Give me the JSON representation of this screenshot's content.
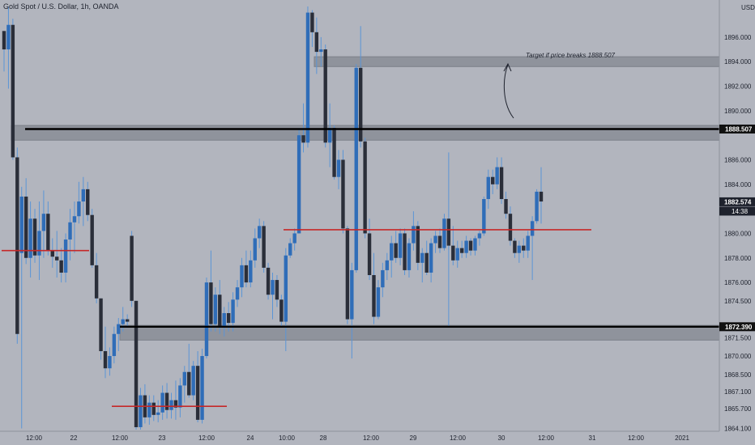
{
  "header": {
    "symbol_line": "Gold Spot / U.S. Dollar, 1h, OANDA",
    "currency": "USD"
  },
  "colors": {
    "background": "#b2b5be",
    "bull_body": "#2f6db8",
    "bear_body": "#2a2e39",
    "wick": "#5b95d6",
    "zone_fill": "#8f939c",
    "black_line": "#000000",
    "red_line": "#c62828",
    "axis_text": "#1e222d"
  },
  "chart_data": {
    "type": "candlestick",
    "title": "Gold Spot / U.S. Dollar, 1h, OANDA",
    "ylim": [
      1864.0,
      1898.5
    ],
    "y_ticks": [
      "1864.100",
      "1865.700",
      "1867.100",
      "1868.500",
      "1870.000",
      "1871.500",
      "1872.390",
      "1874.500",
      "1876.000",
      "1878.000",
      "1880.000",
      "1882.574",
      "1884.000",
      "1886.000",
      "1888.507",
      "1890.000",
      "1892.000",
      "1894.000",
      "1896.000"
    ],
    "x_labels": [
      "12:00",
      "22",
      "12:00",
      "23",
      "12:00",
      "24",
      "10:00",
      "28",
      "12:00",
      "29",
      "12:00",
      "30",
      "12:00",
      "31",
      "12:00",
      "2021"
    ],
    "last_price_badge": "1882.574",
    "countdown_badge": "14:38",
    "levels": [
      {
        "label": "1888.507",
        "price": 1888.507,
        "color": "black"
      },
      {
        "label": "1872.390",
        "price": 1872.39,
        "color": "black"
      }
    ],
    "zones": [
      {
        "from": 1887.6,
        "to": 1888.8
      },
      {
        "from": 1871.3,
        "to": 1872.5
      },
      {
        "from": 1893.6,
        "to": 1894.4
      }
    ],
    "red_lines": [
      {
        "price": 1878.6
      },
      {
        "price": 1880.3
      },
      {
        "price": 1865.9
      }
    ],
    "annotation": {
      "text": "Target if price breaks 1888.507"
    },
    "candles": [
      [
        1896.5,
        1896.5,
        1893.2,
        1895.0
      ],
      [
        1895.0,
        1898.5,
        1891.8,
        1897.0
      ],
      [
        1897.0,
        1897.5,
        1886.0,
        1886.2
      ],
      [
        1886.2,
        1887.0,
        1871.0,
        1871.8
      ],
      [
        1878.4,
        1883.8,
        1864.1,
        1883.0
      ],
      [
        1883.0,
        1884.5,
        1877.5,
        1878.0
      ],
      [
        1878.0,
        1882.6,
        1876.4,
        1881.2
      ],
      [
        1881.2,
        1882.0,
        1877.6,
        1878.2
      ],
      [
        1878.2,
        1882.6,
        1876.2,
        1880.2
      ],
      [
        1880.2,
        1883.5,
        1878.0,
        1881.6
      ],
      [
        1881.6,
        1882.6,
        1878.2,
        1878.6
      ],
      [
        1878.6,
        1879.6,
        1877.2,
        1878.1
      ],
      [
        1878.1,
        1880.2,
        1876.4,
        1877.8
      ],
      [
        1877.8,
        1878.8,
        1876.0,
        1876.8
      ],
      [
        1876.8,
        1880.0,
        1876.0,
        1879.5
      ],
      [
        1879.5,
        1882.0,
        1877.8,
        1880.9
      ],
      [
        1880.9,
        1882.6,
        1878.4,
        1881.4
      ],
      [
        1881.4,
        1884.2,
        1880.8,
        1882.6
      ],
      [
        1882.6,
        1884.6,
        1880.6,
        1883.6
      ],
      [
        1883.6,
        1884.2,
        1881.0,
        1881.5
      ],
      [
        1881.5,
        1882.0,
        1877.2,
        1877.4
      ],
      [
        1877.4,
        1878.4,
        1874.3,
        1874.7
      ],
      [
        1874.7,
        1874.7,
        1869.7,
        1870.4
      ],
      [
        1870.4,
        1872.4,
        1868.2,
        1869.0
      ],
      [
        1869.0,
        1870.7,
        1868.4,
        1870.0
      ],
      [
        1870.0,
        1872.4,
        1869.4,
        1871.8
      ],
      [
        1871.8,
        1873.1,
        1870.4,
        1872.6
      ],
      [
        1872.6,
        1874.0,
        1872.0,
        1873.0
      ],
      [
        1873.0,
        1873.4,
        1872.4,
        1872.8
      ],
      [
        1879.8,
        1880.2,
        1874.0,
        1874.5
      ],
      [
        1874.5,
        1874.5,
        1864.0,
        1864.2
      ],
      [
        1864.2,
        1867.4,
        1864.0,
        1866.8
      ],
      [
        1866.8,
        1867.7,
        1864.5,
        1865.0
      ],
      [
        1865.0,
        1866.8,
        1864.4,
        1866.2
      ],
      [
        1866.2,
        1866.8,
        1864.7,
        1865.2
      ],
      [
        1865.2,
        1866.4,
        1864.6,
        1865.4
      ],
      [
        1865.4,
        1867.6,
        1864.8,
        1867.0
      ],
      [
        1867.0,
        1867.8,
        1864.9,
        1865.6
      ],
      [
        1865.6,
        1867.0,
        1864.9,
        1866.4
      ],
      [
        1866.4,
        1868.0,
        1864.8,
        1865.8
      ],
      [
        1865.8,
        1868.2,
        1865.0,
        1867.6
      ],
      [
        1867.6,
        1869.2,
        1866.2,
        1868.7
      ],
      [
        1868.7,
        1871.0,
        1866.6,
        1866.8
      ],
      [
        1866.8,
        1869.6,
        1866.4,
        1869.2
      ],
      [
        1869.2,
        1870.4,
        1864.6,
        1864.8
      ],
      [
        1864.8,
        1870.6,
        1864.5,
        1870.0
      ],
      [
        1870.0,
        1876.4,
        1869.8,
        1876.0
      ],
      [
        1876.0,
        1878.6,
        1872.0,
        1872.6
      ],
      [
        1872.6,
        1875.6,
        1872.0,
        1875.0
      ],
      [
        1875.0,
        1876.2,
        1871.8,
        1872.4
      ],
      [
        1872.4,
        1874.0,
        1871.6,
        1873.5
      ],
      [
        1873.5,
        1874.4,
        1872.0,
        1872.7
      ],
      [
        1872.7,
        1875.2,
        1872.0,
        1874.6
      ],
      [
        1874.6,
        1876.2,
        1874.0,
        1875.6
      ],
      [
        1875.6,
        1878.0,
        1874.8,
        1877.4
      ],
      [
        1877.4,
        1878.6,
        1875.6,
        1876.0
      ],
      [
        1876.0,
        1878.6,
        1875.6,
        1877.8
      ],
      [
        1877.8,
        1880.4,
        1877.2,
        1879.6
      ],
      [
        1879.6,
        1881.2,
        1878.8,
        1880.6
      ],
      [
        1880.6,
        1881.0,
        1876.8,
        1877.2
      ],
      [
        1877.2,
        1877.6,
        1874.6,
        1875.0
      ],
      [
        1875.0,
        1876.8,
        1873.0,
        1876.2
      ],
      [
        1876.2,
        1876.6,
        1874.0,
        1874.6
      ],
      [
        1874.6,
        1875.0,
        1872.4,
        1872.8
      ],
      [
        1872.8,
        1878.8,
        1870.4,
        1878.2
      ],
      [
        1878.2,
        1879.6,
        1878.0,
        1879.2
      ],
      [
        1879.2,
        1880.4,
        1878.6,
        1880.0
      ],
      [
        1880.0,
        1888.6,
        1880.0,
        1888.0
      ],
      [
        1888.0,
        1890.6,
        1886.6,
        1887.4
      ],
      [
        1887.4,
        1898.5,
        1887.0,
        1898.0
      ],
      [
        1898.0,
        1898.2,
        1895.2,
        1896.4
      ],
      [
        1896.4,
        1897.6,
        1893.0,
        1894.8
      ],
      [
        1894.8,
        1896.0,
        1893.6,
        1895.0
      ],
      [
        1895.0,
        1895.4,
        1887.0,
        1887.4
      ],
      [
        1887.4,
        1890.6,
        1885.4,
        1888.6
      ],
      [
        1888.6,
        1888.8,
        1884.4,
        1884.6
      ],
      [
        1884.6,
        1886.8,
        1883.6,
        1886.0
      ],
      [
        1886.0,
        1886.8,
        1880.0,
        1880.4
      ],
      [
        1880.4,
        1880.6,
        1872.6,
        1873.0
      ],
      [
        1873.0,
        1877.6,
        1869.8,
        1877.0
      ],
      [
        1877.0,
        1893.8,
        1876.8,
        1893.5
      ],
      [
        1893.5,
        1896.9,
        1887.0,
        1887.5
      ],
      [
        1887.5,
        1887.8,
        1879.6,
        1880.0
      ],
      [
        1880.0,
        1881.2,
        1876.2,
        1876.6
      ],
      [
        1876.6,
        1878.4,
        1872.6,
        1873.2
      ],
      [
        1873.2,
        1876.2,
        1873.0,
        1875.6
      ],
      [
        1875.6,
        1877.6,
        1874.8,
        1877.0
      ],
      [
        1877.0,
        1878.4,
        1876.2,
        1877.8
      ],
      [
        1877.8,
        1879.8,
        1876.4,
        1879.2
      ],
      [
        1879.2,
        1880.2,
        1877.6,
        1878.0
      ],
      [
        1878.0,
        1880.4,
        1877.4,
        1880.0
      ],
      [
        1880.0,
        1880.4,
        1876.6,
        1877.0
      ],
      [
        1877.0,
        1879.6,
        1876.4,
        1879.2
      ],
      [
        1879.2,
        1881.8,
        1878.6,
        1880.6
      ],
      [
        1880.6,
        1881.0,
        1877.0,
        1877.6
      ],
      [
        1877.6,
        1878.8,
        1876.0,
        1878.4
      ],
      [
        1878.4,
        1879.4,
        1876.6,
        1876.8
      ],
      [
        1876.8,
        1879.6,
        1876.0,
        1879.2
      ],
      [
        1879.2,
        1880.2,
        1878.4,
        1879.8
      ],
      [
        1879.8,
        1880.4,
        1878.4,
        1878.8
      ],
      [
        1878.8,
        1881.6,
        1878.6,
        1881.2
      ],
      [
        1881.2,
        1886.6,
        1872.4,
        1879.0
      ],
      [
        1879.0,
        1880.6,
        1877.4,
        1877.8
      ],
      [
        1877.8,
        1879.4,
        1877.2,
        1878.8
      ],
      [
        1878.8,
        1879.4,
        1878.0,
        1878.4
      ],
      [
        1878.4,
        1879.8,
        1878.0,
        1879.4
      ],
      [
        1879.4,
        1879.6,
        1878.2,
        1878.6
      ],
      [
        1878.6,
        1879.8,
        1878.2,
        1879.6
      ],
      [
        1879.6,
        1880.2,
        1879.0,
        1880.0
      ],
      [
        1880.0,
        1883.0,
        1879.8,
        1882.8
      ],
      [
        1882.8,
        1885.2,
        1882.0,
        1884.6
      ],
      [
        1884.6,
        1885.2,
        1883.2,
        1884.0
      ],
      [
        1884.0,
        1886.2,
        1883.6,
        1885.4
      ],
      [
        1885.4,
        1886.2,
        1882.4,
        1882.8
      ],
      [
        1882.8,
        1883.4,
        1881.2,
        1881.6
      ],
      [
        1881.6,
        1882.2,
        1879.0,
        1879.4
      ],
      [
        1879.4,
        1879.6,
        1878.0,
        1878.4
      ],
      [
        1878.4,
        1879.4,
        1877.6,
        1879.0
      ],
      [
        1879.0,
        1879.6,
        1878.0,
        1878.6
      ],
      [
        1878.6,
        1880.2,
        1878.0,
        1879.8
      ],
      [
        1879.8,
        1881.4,
        1876.2,
        1881.0
      ],
      [
        1881.0,
        1883.6,
        1880.8,
        1883.4
      ],
      [
        1883.4,
        1885.4,
        1880.8,
        1882.6
      ]
    ]
  }
}
